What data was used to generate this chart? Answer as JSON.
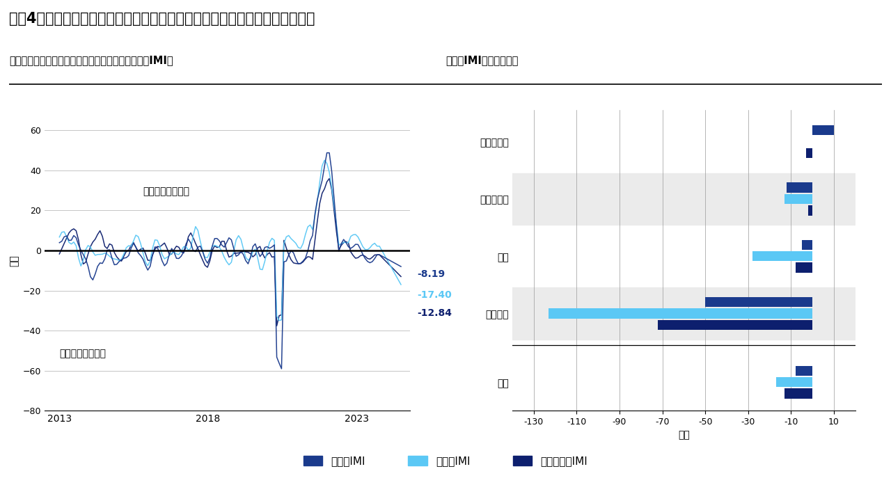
{
  "title": "図表4：欧州、英国、米国のインフレ・モメンタムは著しくかつ同調して低下",
  "left_subtitle": "地域別インフレ・モメンタム・インディケーター（IMI）",
  "right_subtitle": "地域別IMI：カテゴリー",
  "left_ylabel": "指数",
  "right_xlabel": "指数",
  "annotation_rising": "インフレ率が上昇",
  "annotation_falling": "インフレ率が低下",
  "end_values": {
    "us": "-8.19",
    "uk": "-17.40",
    "euro": "-12.84"
  },
  "colors": {
    "us": "#1a3a8c",
    "uk": "#5bc8f5",
    "euro": "#0d1f6e",
    "shaded_band": "#ebebeb"
  },
  "bar_categories": [
    "消費者物価",
    "生産者物価",
    "賃金",
    "輸入物価",
    "合計"
  ],
  "bar_data": {
    "us": [
      10,
      -12,
      -5,
      -50,
      -8
    ],
    "uk": [
      0,
      -13,
      -28,
      -123,
      -17
    ],
    "euro": [
      -3,
      -2,
      -8,
      -72,
      -13
    ]
  },
  "bar_colors": {
    "us": "#1a3a8c",
    "uk": "#5bc8f5",
    "euro": "#0d1f6e"
  },
  "legend_labels": {
    "us": "米国のIMI",
    "uk": "英国のIMI",
    "euro": "ユーロ圏のIMI"
  },
  "xlim_bar": [
    -140,
    20
  ],
  "xticks_bar": [
    -130,
    -110,
    -90,
    -70,
    -50,
    -30,
    -10,
    10
  ],
  "ylim_line": [
    -80,
    70
  ],
  "yticks_line": [
    -80,
    -60,
    -40,
    -20,
    0,
    20,
    40,
    60
  ]
}
